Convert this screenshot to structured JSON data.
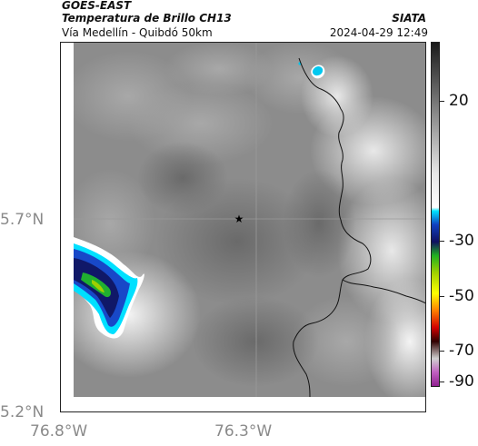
{
  "header": {
    "satellite": "GOES-EAST",
    "product": "Temperatura de Brillo CH13",
    "route": "Vía Medellín - Quibdó 50km",
    "source": "SIATA",
    "datetime": "2024-04-29 12:49"
  },
  "axes": {
    "lat_labels": [
      "5.7°N",
      "5.2°N"
    ],
    "lon_labels": [
      "76.8°W",
      "76.3°W"
    ]
  },
  "colorbar": {
    "ticks": [
      "20",
      "-30",
      "-50",
      "-70",
      "-90"
    ],
    "stops": [
      {
        "v": 1.0,
        "c": "#1a1a1a"
      },
      {
        "v": 0.62,
        "c": "#e6e6e6"
      },
      {
        "v": 0.52,
        "c": "#ffffff"
      },
      {
        "v": 0.51,
        "c": "#00e5ff"
      },
      {
        "v": 0.47,
        "c": "#1040c0"
      },
      {
        "v": 0.42,
        "c": "#101060"
      },
      {
        "v": 0.38,
        "c": "#20b020"
      },
      {
        "v": 0.33,
        "c": "#a0d000"
      },
      {
        "v": 0.27,
        "c": "#ffff00"
      },
      {
        "v": 0.22,
        "c": "#ff8000"
      },
      {
        "v": 0.17,
        "c": "#d00000"
      },
      {
        "v": 0.13,
        "c": "#300000"
      },
      {
        "v": 0.08,
        "c": "#d0d0d0"
      },
      {
        "v": 0.04,
        "c": "#c060c0"
      },
      {
        "v": 0.0,
        "c": "#902090"
      }
    ]
  },
  "marker": {
    "symbol": "★"
  }
}
